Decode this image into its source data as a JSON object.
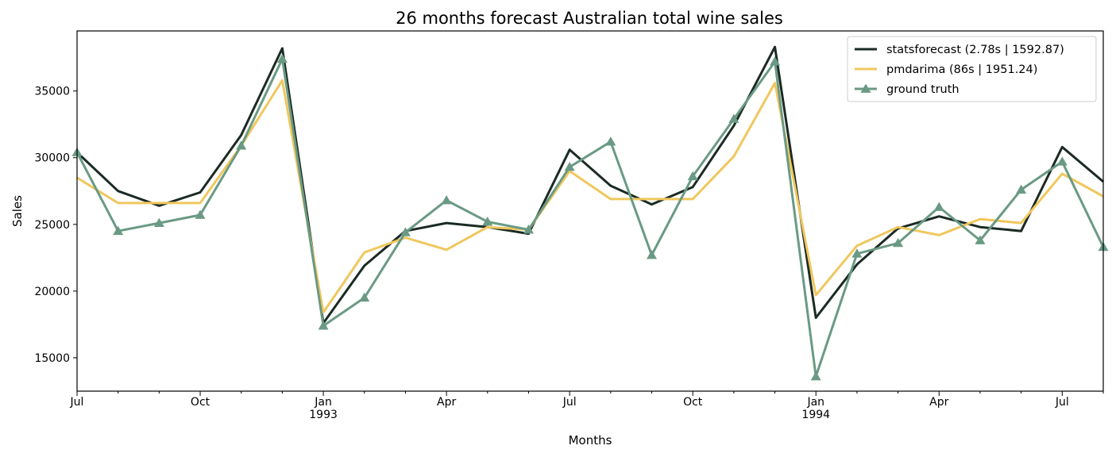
{
  "chart_data": {
    "type": "line",
    "title": "26 months forecast Australian total wine sales",
    "xlabel": "Months",
    "ylabel": "Sales",
    "ylim": [
      12500,
      39500
    ],
    "yticks": [
      15000,
      20000,
      25000,
      30000,
      35000
    ],
    "x": [
      "1992-07",
      "1992-08",
      "1992-09",
      "1992-10",
      "1992-11",
      "1992-12",
      "1993-01",
      "1993-02",
      "1993-03",
      "1993-04",
      "1993-05",
      "1993-06",
      "1993-07",
      "1993-08",
      "1993-09",
      "1993-10",
      "1993-11",
      "1993-12",
      "1994-01",
      "1994-02",
      "1994-03",
      "1994-04",
      "1994-05",
      "1994-06",
      "1994-07",
      "1994-08"
    ],
    "xtick_labels": [
      {
        "x": "1992-07",
        "label": "Jul",
        "sub": ""
      },
      {
        "x": "1992-10",
        "label": "Oct",
        "sub": ""
      },
      {
        "x": "1993-01",
        "label": "Jan",
        "sub": "1993"
      },
      {
        "x": "1993-04",
        "label": "Apr",
        "sub": ""
      },
      {
        "x": "1993-07",
        "label": "Jul",
        "sub": ""
      },
      {
        "x": "1993-10",
        "label": "Oct",
        "sub": ""
      },
      {
        "x": "1994-01",
        "label": "Jan",
        "sub": "1994"
      },
      {
        "x": "1994-04",
        "label": "Apr",
        "sub": ""
      },
      {
        "x": "1994-07",
        "label": "Jul",
        "sub": ""
      }
    ],
    "series": [
      {
        "name": "statsforecast (2.78s | 1592.87)",
        "color": "#1b2b24",
        "marker": "none",
        "values": [
          30400,
          27500,
          26400,
          27400,
          31700,
          38200,
          17600,
          21900,
          24500,
          25100,
          24800,
          24300,
          30600,
          27900,
          26500,
          27800,
          32400,
          38300,
          18000,
          22000,
          24700,
          25600,
          24800,
          24500,
          30800,
          28200
        ]
      },
      {
        "name": "pmdarima (86s | 1951.24)",
        "color": "#f0c75e",
        "marker": "none",
        "values": [
          28500,
          26600,
          26600,
          26600,
          30900,
          35800,
          18400,
          22900,
          24000,
          23100,
          24800,
          24600,
          29000,
          26900,
          26900,
          26900,
          30100,
          35600,
          19700,
          23400,
          24800,
          24200,
          25400,
          25100,
          28800,
          27100
        ]
      },
      {
        "name": "ground truth",
        "color": "#6a9a84",
        "marker": "triangle",
        "values": [
          30400,
          24500,
          25100,
          25700,
          30900,
          37400,
          17400,
          19500,
          24400,
          26800,
          25200,
          24600,
          29300,
          31200,
          22700,
          28600,
          32900,
          37200,
          13600,
          22800,
          23600,
          26300,
          23800,
          27600,
          29700,
          23300
        ]
      }
    ],
    "legend_position": "top-right",
    "grid": false
  }
}
